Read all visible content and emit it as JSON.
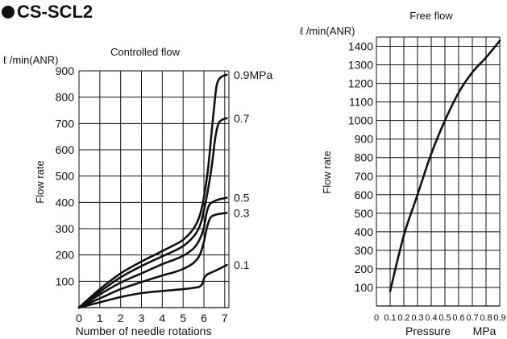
{
  "page": {
    "title": "CS-SCL2"
  },
  "chart_data": [
    {
      "type": "line",
      "title": "Controlled flow",
      "xlabel": "Number of needle rotations",
      "ylabel": "Flow rate",
      "yunit": "ℓ /min(ANR)",
      "xlim": [
        0,
        7.2
      ],
      "ylim": [
        0,
        900
      ],
      "xticks": [
        0,
        1,
        2,
        3,
        4,
        5,
        6,
        7
      ],
      "yticks": [
        100,
        200,
        300,
        400,
        500,
        600,
        700,
        800,
        900
      ],
      "grid": true,
      "series": [
        {
          "name": "0.9MPa",
          "x": [
            0,
            1,
            2,
            3,
            4,
            4.5,
            5,
            5.5,
            5.8,
            6.0,
            6.2,
            6.35,
            6.5,
            6.6,
            6.7,
            6.8,
            6.9,
            7.0,
            7.1
          ],
          "y": [
            0,
            70,
            130,
            175,
            215,
            235,
            258,
            300,
            350,
            420,
            530,
            650,
            770,
            840,
            865,
            875,
            880,
            883,
            885
          ]
        },
        {
          "name": "0.7",
          "x": [
            0,
            1,
            2,
            3,
            4,
            4.5,
            5,
            5.5,
            5.8,
            6.0,
            6.2,
            6.4,
            6.5,
            6.6,
            6.7,
            6.8,
            6.9,
            7.0,
            7.1
          ],
          "y": [
            0,
            60,
            115,
            158,
            195,
            213,
            234,
            270,
            310,
            370,
            450,
            550,
            620,
            670,
            700,
            710,
            715,
            718,
            720
          ]
        },
        {
          "name": "0.5",
          "x": [
            0,
            1,
            2,
            3,
            4,
            4.5,
            5,
            5.5,
            5.8,
            6.0,
            6.1,
            6.2,
            6.3,
            6.4,
            6.6,
            6.8,
            7.0,
            7.1
          ],
          "y": [
            0,
            50,
            95,
            130,
            165,
            180,
            197,
            225,
            260,
            305,
            350,
            380,
            395,
            400,
            408,
            413,
            416,
            418
          ]
        },
        {
          "name": "0.3",
          "x": [
            0,
            1,
            2,
            3,
            4,
            4.5,
            5,
            5.5,
            5.8,
            6.0,
            6.1,
            6.2,
            6.3,
            6.4,
            6.6,
            6.8,
            7.0,
            7.1
          ],
          "y": [
            0,
            35,
            70,
            97,
            122,
            133,
            147,
            170,
            200,
            250,
            290,
            320,
            340,
            348,
            354,
            357,
            359,
            360
          ]
        },
        {
          "name": "0.1",
          "x": [
            0,
            1,
            2,
            3,
            4,
            5,
            5.5,
            5.8,
            5.95,
            6.0,
            6.1,
            6.2,
            6.4,
            6.6,
            6.8,
            7.0,
            7.1
          ],
          "y": [
            0,
            20,
            40,
            55,
            63,
            70,
            75,
            80,
            95,
            110,
            122,
            128,
            135,
            142,
            150,
            158,
            162
          ]
        }
      ]
    },
    {
      "type": "line",
      "title": "Free flow",
      "xlabel": "Pressure",
      "xunit": "MPa",
      "ylabel": "Flow rate",
      "yunit": "ℓ /min(ANR)",
      "xlim": [
        0,
        0.9
      ],
      "ylim": [
        0,
        1450
      ],
      "xticks": [
        0,
        0.1,
        0.2,
        0.3,
        0.4,
        0.5,
        0.6,
        0.7,
        0.8,
        0.9
      ],
      "xticklabels": [
        "0",
        "0.1",
        "0.2",
        "0.3",
        "0.4",
        "0.5",
        "0.6",
        "0.7",
        "0.8",
        "0.9"
      ],
      "yticks": [
        100,
        200,
        300,
        400,
        500,
        600,
        700,
        800,
        900,
        1000,
        1100,
        1200,
        1300,
        1400
      ],
      "grid": true,
      "series": [
        {
          "x": [
            0.1,
            0.2,
            0.3,
            0.4,
            0.5,
            0.6,
            0.7,
            0.8,
            0.9
          ],
          "y": [
            80,
            380,
            600,
            820,
            1000,
            1150,
            1260,
            1340,
            1430
          ]
        }
      ]
    }
  ]
}
